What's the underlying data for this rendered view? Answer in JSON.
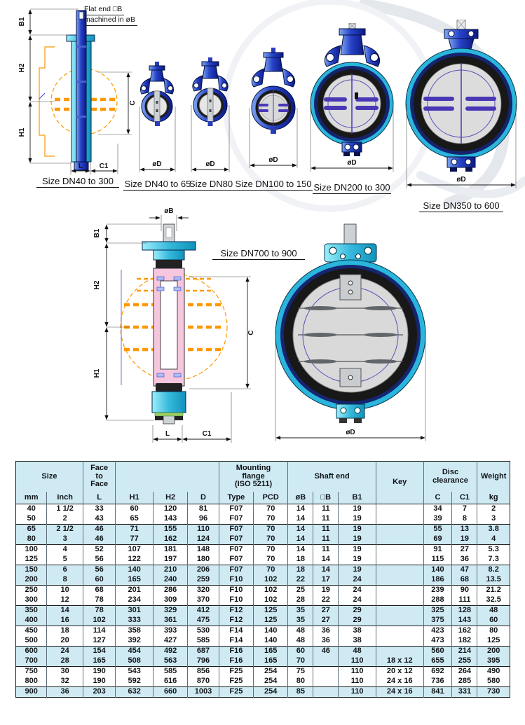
{
  "annotation": {
    "line1": "Flat end □B",
    "line2": "machined in øB"
  },
  "dims": {
    "b1": "B1",
    "h1": "H1",
    "h2": "H2",
    "c": "C",
    "c1": "C1",
    "l": "L",
    "od": "øD",
    "ob": "øB"
  },
  "captions": {
    "dn40_300": "Size DN40 to 300",
    "dn40_65": "Size DN40 to 65",
    "dn80": "Size DN80",
    "dn100_150": "Size DN100 to 150",
    "dn200_300": "Size DN200 to 300",
    "dn350_600": "Size DN350 to 600",
    "dn700_900": "Size DN700 to 900"
  },
  "colors": {
    "valve_blue": "#12219b",
    "valve_cyan": "#2ab5dd",
    "disc_orange": "#ff9800",
    "table_band": "#cfeaf3"
  },
  "table": {
    "group_headers": [
      {
        "label": "Size"
      },
      {
        "label": "Face\nto\nFace"
      },
      {
        "label": ""
      },
      {
        "label": "Mounting\nflange\n(ISO 5211)"
      },
      {
        "label": "Shaft end"
      },
      {
        "label": "Key"
      },
      {
        "label": "Disc\nclearance"
      },
      {
        "label": "Weight"
      }
    ],
    "sub_headers": [
      "mm",
      "inch",
      "L",
      "H1",
      "H2",
      "D",
      "Type",
      "PCD",
      "øB",
      "□B",
      "B1",
      "C",
      "C1",
      "kg"
    ],
    "rows": [
      [
        "40",
        "1 1/2",
        "33",
        "60",
        "120",
        "81",
        "F07",
        "70",
        "14",
        "11",
        "19",
        "",
        "34",
        "7",
        "2"
      ],
      [
        "50",
        "2",
        "43",
        "65",
        "143",
        "96",
        "F07",
        "70",
        "14",
        "11",
        "19",
        "",
        "39",
        "8",
        "3"
      ],
      [
        "65",
        "2 1/2",
        "46",
        "71",
        "155",
        "110",
        "F07",
        "70",
        "14",
        "11",
        "19",
        "",
        "55",
        "13",
        "3.8"
      ],
      [
        "80",
        "3",
        "46",
        "77",
        "162",
        "124",
        "F07",
        "70",
        "14",
        "11",
        "19",
        "",
        "69",
        "19",
        "4"
      ],
      [
        "100",
        "4",
        "52",
        "107",
        "181",
        "148",
        "F07",
        "70",
        "14",
        "11",
        "19",
        "",
        "91",
        "27",
        "5.3"
      ],
      [
        "125",
        "5",
        "56",
        "122",
        "197",
        "180",
        "F07",
        "70",
        "18",
        "14",
        "19",
        "",
        "115",
        "36",
        "7.3"
      ],
      [
        "150",
        "6",
        "56",
        "140",
        "210",
        "206",
        "F07",
        "70",
        "18",
        "14",
        "19",
        "",
        "140",
        "47",
        "8.2"
      ],
      [
        "200",
        "8",
        "60",
        "165",
        "240",
        "259",
        "F10",
        "102",
        "22",
        "17",
        "24",
        "",
        "186",
        "68",
        "13.5"
      ],
      [
        "250",
        "10",
        "68",
        "201",
        "286",
        "320",
        "F10",
        "102",
        "25",
        "19",
        "24",
        "",
        "239",
        "90",
        "21.2"
      ],
      [
        "300",
        "12",
        "78",
        "234",
        "309",
        "370",
        "F10",
        "102",
        "28",
        "22",
        "24",
        "",
        "288",
        "111",
        "32.5"
      ],
      [
        "350",
        "14",
        "78",
        "301",
        "329",
        "412",
        "F12",
        "125",
        "35",
        "27",
        "29",
        "",
        "325",
        "128",
        "48"
      ],
      [
        "400",
        "16",
        "102",
        "333",
        "361",
        "475",
        "F12",
        "125",
        "35",
        "27",
        "29",
        "",
        "375",
        "143",
        "60"
      ],
      [
        "450",
        "18",
        "114",
        "358",
        "393",
        "530",
        "F14",
        "140",
        "48",
        "36",
        "38",
        "",
        "423",
        "162",
        "80"
      ],
      [
        "500",
        "20",
        "127",
        "392",
        "427",
        "585",
        "F14",
        "140",
        "48",
        "36",
        "38",
        "",
        "473",
        "182",
        "125"
      ],
      [
        "600",
        "24",
        "154",
        "454",
        "492",
        "687",
        "F16",
        "165",
        "60",
        "46",
        "48",
        "",
        "560",
        "214",
        "200"
      ],
      [
        "700",
        "28",
        "165",
        "508",
        "563",
        "796",
        "F16",
        "165",
        "70",
        "",
        "110",
        "18 x 12",
        "655",
        "255",
        "395"
      ],
      [
        "750",
        "30",
        "190",
        "543",
        "585",
        "856",
        "F25",
        "254",
        "75",
        "",
        "110",
        "20 x 12",
        "692",
        "264",
        "490"
      ],
      [
        "800",
        "32",
        "190",
        "592",
        "616",
        "870",
        "F25",
        "254",
        "80",
        "",
        "110",
        "24 x 16",
        "736",
        "285",
        "580"
      ],
      [
        "900",
        "36",
        "203",
        "632",
        "660",
        "1003",
        "F25",
        "254",
        "85",
        "",
        "110",
        "24 x 16",
        "841",
        "331",
        "730"
      ]
    ]
  }
}
